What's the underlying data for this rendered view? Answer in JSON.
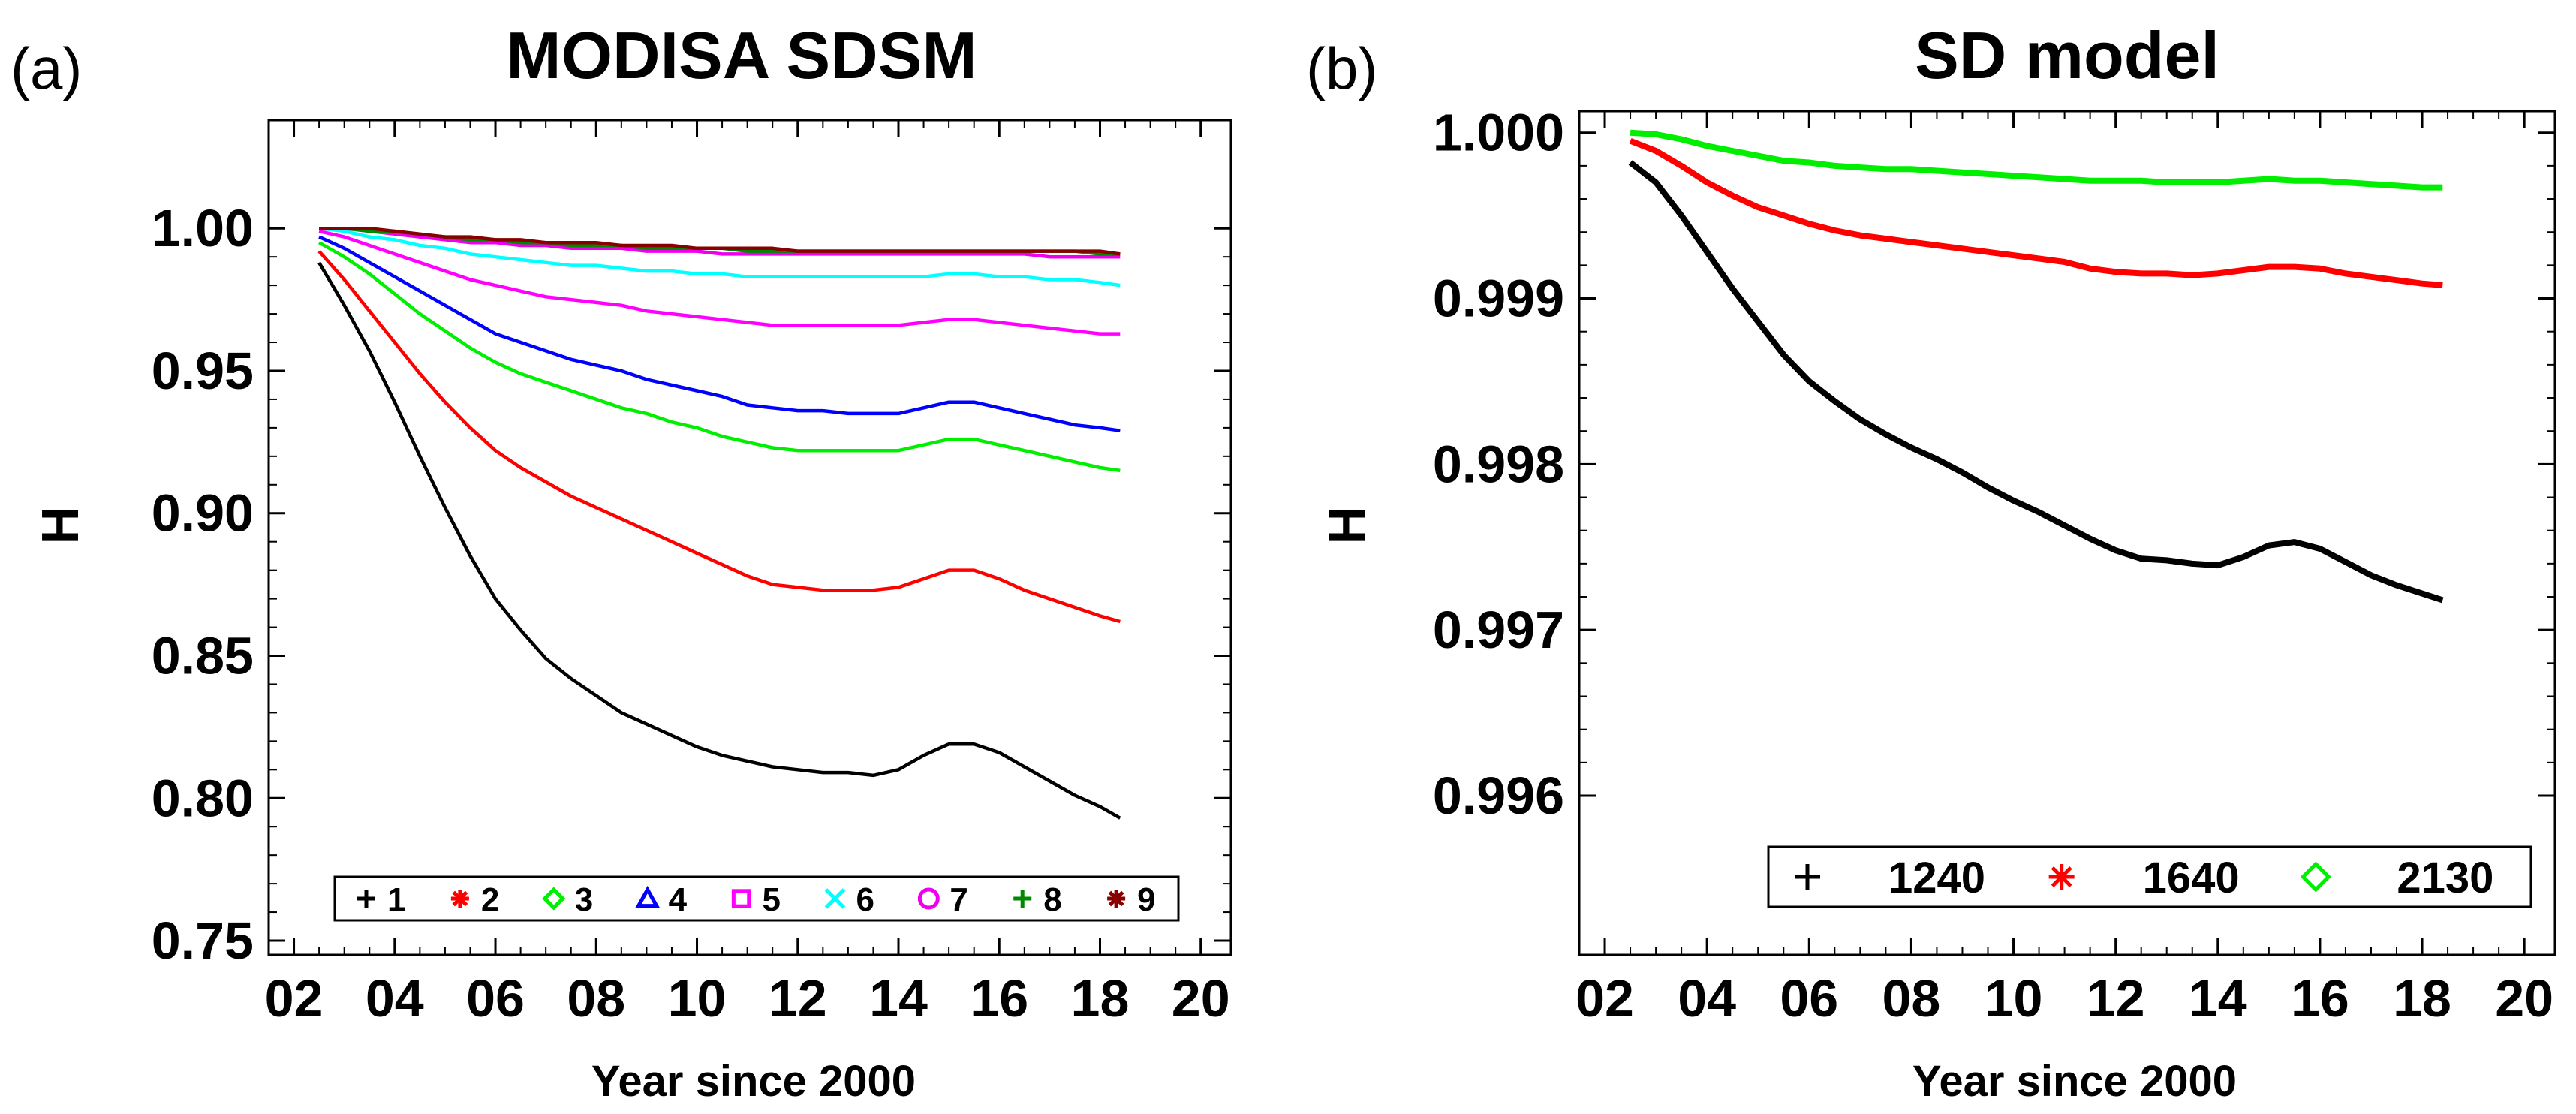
{
  "chart_data": [
    {
      "panel_label": "(a)",
      "type": "line",
      "title": "MODISA SDSM",
      "xlabel": "Year since 2000",
      "ylabel": "H",
      "xlim": [
        1.5,
        20.6
      ],
      "ylim": [
        0.745,
        1.038
      ],
      "xticks": [
        2,
        4,
        6,
        8,
        10,
        12,
        14,
        16,
        18,
        20
      ],
      "xtick_labels": [
        "02",
        "04",
        "06",
        "08",
        "10",
        "12",
        "14",
        "16",
        "18",
        "20"
      ],
      "yticks": [
        0.75,
        0.8,
        0.85,
        0.9,
        0.95,
        1.0
      ],
      "ytick_labels": [
        "0.75",
        "0.80",
        "0.85",
        "0.90",
        "0.95",
        "1.00"
      ],
      "legend_position": "bottom",
      "x": [
        2.5,
        3,
        3.5,
        4,
        4.5,
        5,
        5.5,
        6,
        6.5,
        7,
        7.5,
        8,
        8.5,
        9,
        9.5,
        10,
        10.5,
        11,
        11.5,
        12,
        12.5,
        13,
        13.5,
        14,
        14.5,
        15,
        15.5,
        16,
        16.5,
        17,
        17.5,
        18,
        18.4
      ],
      "series": [
        {
          "name": "1",
          "color": "#000000",
          "marker": "+",
          "values": [
            0.988,
            0.973,
            0.957,
            0.939,
            0.92,
            0.902,
            0.885,
            0.87,
            0.859,
            0.849,
            0.842,
            0.836,
            0.83,
            0.826,
            0.822,
            0.818,
            0.815,
            0.813,
            0.811,
            0.81,
            0.809,
            0.809,
            0.808,
            0.81,
            0.815,
            0.819,
            0.819,
            0.816,
            0.811,
            0.806,
            0.801,
            0.797,
            0.793
          ]
        },
        {
          "name": "2",
          "color": "#ff0000",
          "marker": "*",
          "values": [
            0.992,
            0.982,
            0.971,
            0.96,
            0.949,
            0.939,
            0.93,
            0.922,
            0.916,
            0.911,
            0.906,
            0.902,
            0.898,
            0.894,
            0.89,
            0.886,
            0.882,
            0.878,
            0.875,
            0.874,
            0.873,
            0.873,
            0.873,
            0.874,
            0.877,
            0.88,
            0.88,
            0.877,
            0.873,
            0.87,
            0.867,
            0.864,
            0.862
          ]
        },
        {
          "name": "3",
          "color": "#00ee00",
          "marker": "diamond",
          "values": [
            0.995,
            0.99,
            0.984,
            0.977,
            0.97,
            0.964,
            0.958,
            0.953,
            0.949,
            0.946,
            0.943,
            0.94,
            0.937,
            0.935,
            0.932,
            0.93,
            0.927,
            0.925,
            0.923,
            0.922,
            0.922,
            0.922,
            0.922,
            0.922,
            0.924,
            0.926,
            0.926,
            0.924,
            0.922,
            0.92,
            0.918,
            0.916,
            0.915
          ]
        },
        {
          "name": "4",
          "color": "#0000ff",
          "marker": "triangle",
          "values": [
            0.997,
            0.993,
            0.988,
            0.983,
            0.978,
            0.973,
            0.968,
            0.963,
            0.96,
            0.957,
            0.954,
            0.952,
            0.95,
            0.947,
            0.945,
            0.943,
            0.941,
            0.938,
            0.937,
            0.936,
            0.936,
            0.935,
            0.935,
            0.935,
            0.937,
            0.939,
            0.939,
            0.937,
            0.935,
            0.933,
            0.931,
            0.93,
            0.929
          ]
        },
        {
          "name": "5",
          "color": "#ff00ff",
          "marker": "square",
          "values": [
            0.999,
            0.997,
            0.994,
            0.991,
            0.988,
            0.985,
            0.982,
            0.98,
            0.978,
            0.976,
            0.975,
            0.974,
            0.973,
            0.971,
            0.97,
            0.969,
            0.968,
            0.967,
            0.966,
            0.966,
            0.966,
            0.966,
            0.966,
            0.966,
            0.967,
            0.968,
            0.968,
            0.967,
            0.966,
            0.965,
            0.964,
            0.963,
            0.963
          ]
        },
        {
          "name": "6",
          "color": "#00ffff",
          "marker": "x",
          "values": [
            1.0,
            0.999,
            0.997,
            0.996,
            0.994,
            0.993,
            0.991,
            0.99,
            0.989,
            0.988,
            0.987,
            0.987,
            0.986,
            0.985,
            0.985,
            0.984,
            0.984,
            0.983,
            0.983,
            0.983,
            0.983,
            0.983,
            0.983,
            0.983,
            0.983,
            0.984,
            0.984,
            0.983,
            0.983,
            0.982,
            0.982,
            0.981,
            0.98
          ]
        },
        {
          "name": "7",
          "color": "#ee00ee",
          "marker": "circle",
          "values": [
            1.0,
            1.0,
            0.999,
            0.998,
            0.997,
            0.996,
            0.995,
            0.995,
            0.994,
            0.994,
            0.993,
            0.993,
            0.993,
            0.992,
            0.992,
            0.992,
            0.991,
            0.991,
            0.991,
            0.991,
            0.991,
            0.991,
            0.991,
            0.991,
            0.991,
            0.991,
            0.991,
            0.991,
            0.991,
            0.99,
            0.99,
            0.99,
            0.99
          ]
        },
        {
          "name": "8",
          "color": "#008800",
          "marker": "+",
          "values": [
            1.0,
            1.0,
            0.999,
            0.999,
            0.998,
            0.997,
            0.996,
            0.996,
            0.995,
            0.995,
            0.994,
            0.994,
            0.994,
            0.993,
            0.993,
            0.993,
            0.993,
            0.992,
            0.992,
            0.992,
            0.992,
            0.992,
            0.992,
            0.992,
            0.992,
            0.992,
            0.992,
            0.992,
            0.992,
            0.992,
            0.992,
            0.991,
            0.991
          ]
        },
        {
          "name": "9",
          "color": "#880000",
          "marker": "*",
          "values": [
            1.0,
            1.0,
            1.0,
            0.999,
            0.998,
            0.997,
            0.997,
            0.996,
            0.996,
            0.995,
            0.995,
            0.995,
            0.994,
            0.994,
            0.994,
            0.993,
            0.993,
            0.993,
            0.993,
            0.992,
            0.992,
            0.992,
            0.992,
            0.992,
            0.992,
            0.992,
            0.992,
            0.992,
            0.992,
            0.992,
            0.992,
            0.992,
            0.991
          ]
        }
      ]
    },
    {
      "panel_label": "(b)",
      "type": "line",
      "title": "SD model",
      "xlabel": "Year since 2000",
      "ylabel": "H",
      "xlim": [
        1.5,
        20.6
      ],
      "ylim": [
        0.99504,
        1.00013
      ],
      "xticks": [
        2,
        4,
        6,
        8,
        10,
        12,
        14,
        16,
        18,
        20
      ],
      "xtick_labels": [
        "02",
        "04",
        "06",
        "08",
        "10",
        "12",
        "14",
        "16",
        "18",
        "20"
      ],
      "yticks": [
        0.996,
        0.997,
        0.998,
        0.999,
        1.0
      ],
      "ytick_labels": [
        "0.996",
        "0.997",
        "0.998",
        "0.999",
        "1.000"
      ],
      "legend_position": "bottom",
      "x": [
        2.5,
        3,
        3.5,
        4,
        4.5,
        5,
        5.5,
        6,
        6.5,
        7,
        7.5,
        8,
        8.5,
        9,
        9.5,
        10,
        10.5,
        11,
        11.5,
        12,
        12.5,
        13,
        13.5,
        14,
        14.5,
        15,
        15.5,
        16,
        16.5,
        17,
        17.5,
        18,
        18.4
      ],
      "series": [
        {
          "name": "1240",
          "color": "#000000",
          "marker": "+",
          "values": [
            0.99982,
            0.9997,
            0.9995,
            0.99928,
            0.99906,
            0.99886,
            0.99866,
            0.9985,
            0.99838,
            0.99827,
            0.99818,
            0.9981,
            0.99803,
            0.99795,
            0.99786,
            0.99778,
            0.99771,
            0.99763,
            0.99755,
            0.99748,
            0.99743,
            0.99742,
            0.9974,
            0.99739,
            0.99744,
            0.99751,
            0.99753,
            0.99749,
            0.99741,
            0.99733,
            0.99727,
            0.99722,
            0.99718
          ]
        },
        {
          "name": "1640",
          "color": "#ff0000",
          "marker": "*",
          "values": [
            0.99995,
            0.99989,
            0.9998,
            0.9997,
            0.99962,
            0.99955,
            0.9995,
            0.99945,
            0.99941,
            0.99938,
            0.99936,
            0.99934,
            0.99932,
            0.9993,
            0.99928,
            0.99926,
            0.99924,
            0.99922,
            0.99918,
            0.99916,
            0.99915,
            0.99915,
            0.99914,
            0.99915,
            0.99917,
            0.99919,
            0.99919,
            0.99918,
            0.99915,
            0.99913,
            0.99911,
            0.99909,
            0.99908
          ]
        },
        {
          "name": "2130",
          "color": "#00ee00",
          "marker": "diamond",
          "values": [
            1.0,
            0.99999,
            0.99996,
            0.99992,
            0.99989,
            0.99986,
            0.99983,
            0.99982,
            0.9998,
            0.99979,
            0.99978,
            0.99978,
            0.99977,
            0.99976,
            0.99975,
            0.99974,
            0.99973,
            0.99972,
            0.99971,
            0.99971,
            0.99971,
            0.9997,
            0.9997,
            0.9997,
            0.99971,
            0.99972,
            0.99971,
            0.99971,
            0.9997,
            0.99969,
            0.99968,
            0.99967,
            0.99967
          ]
        }
      ]
    }
  ]
}
